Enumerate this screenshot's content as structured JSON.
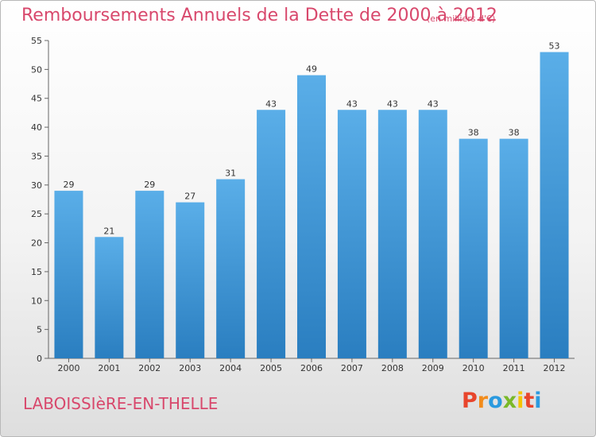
{
  "header": {
    "title": "Remboursements Annuels de la Dette de 2000 à 2012",
    "subtitle": "(en milliers d'€)"
  },
  "footer": {
    "commune": "LABOISSIèRE-EN-THELLE",
    "logo_text": "Proxiti",
    "logo_colors": [
      "#e8452c",
      "#f28c1c",
      "#2a9adf",
      "#7ab929",
      "#f5c400",
      "#e8452c",
      "#2a9adf"
    ]
  },
  "colors": {
    "title": "#d8486c",
    "bar_top": "#5aaee8",
    "bar_bottom": "#2a7ec0"
  },
  "chart_data": {
    "type": "bar",
    "categories": [
      "2000",
      "2001",
      "2002",
      "2003",
      "2004",
      "2005",
      "2006",
      "2007",
      "2008",
      "2009",
      "2010",
      "2011",
      "2012"
    ],
    "values": [
      29,
      21,
      29,
      27,
      31,
      43,
      49,
      43,
      43,
      43,
      38,
      38,
      53
    ],
    "ylim": [
      0,
      55
    ],
    "yticks": [
      0,
      5,
      10,
      15,
      20,
      25,
      30,
      35,
      40,
      45,
      50,
      55
    ],
    "grid": false,
    "legend": "none"
  }
}
